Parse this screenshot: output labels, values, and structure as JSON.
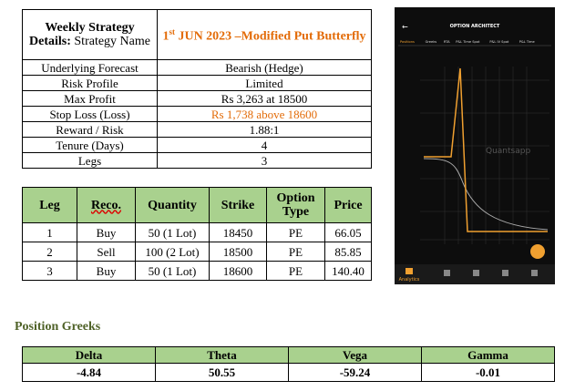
{
  "strategy_table": {
    "header": {
      "label_bold": "Weekly Strategy Details:",
      "label_rest": "Strategy Name",
      "title_day": "1",
      "title_suffix": "st",
      "title_rest": "JUN 2023 –Modified Put Butterfly"
    },
    "rows": [
      [
        "Underlying Forecast",
        "Bearish (Hedge)"
      ],
      [
        "Risk Profile",
        "Limited"
      ],
      [
        "Max Profit",
        "Rs 3,263 at 18500"
      ],
      [
        "Stop Loss (Loss)",
        "Rs 1,738 above 18600"
      ],
      [
        "Reward / Risk",
        "1.88:1"
      ],
      [
        "Tenure (Days)",
        "4"
      ],
      [
        "Legs",
        "3"
      ]
    ]
  },
  "legs_table": {
    "columns": [
      "Leg",
      "Reco.",
      "Quantity",
      "Strike",
      "Option Type",
      "Price"
    ],
    "rows": [
      [
        "1",
        "Buy",
        "50 (1 Lot)",
        "18450",
        "PE",
        "66.05"
      ],
      [
        "2",
        "Sell",
        "100 (2 Lot)",
        "18500",
        "PE",
        "85.85"
      ],
      [
        "3",
        "Buy",
        "50 (1 Lot)",
        "18600",
        "PE",
        "140.40"
      ]
    ]
  },
  "app_screenshot": {
    "title": "OPTION ARCHITECT",
    "tabs": [
      "Positions",
      "Greeks",
      "RTA",
      "P&L Time Spot",
      "P&L IV Spot",
      "P&L Time"
    ],
    "watermark": "Quantsapp",
    "nav_label": "Analytics"
  },
  "greeks": {
    "title": "Position Greeks",
    "columns": [
      "Delta",
      "Theta",
      "Vega",
      "Gamma"
    ],
    "values": [
      "-4.84",
      "50.55",
      "-59.24",
      "-0.01"
    ]
  }
}
